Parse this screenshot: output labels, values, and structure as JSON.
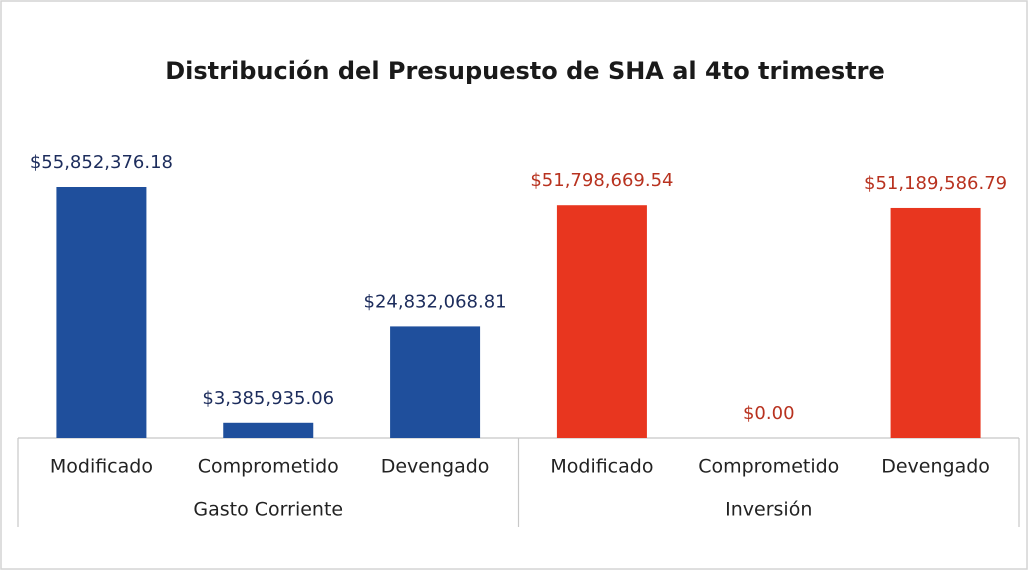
{
  "chart_data": {
    "type": "bar",
    "title": "Distribución del Presupuesto de SHA al 4to trimestre",
    "groups": [
      {
        "name": "Gasto Corriente",
        "color": "#1f4f9c",
        "label_color": "#1c2c5c",
        "categories": [
          "Modificado",
          "Comprometido",
          "Devengado"
        ],
        "values": [
          55852376.18,
          3385935.06,
          24832068.81
        ],
        "value_labels": [
          "$55,852,376.18",
          "$3,385,935.06",
          "$24,832,068.81"
        ]
      },
      {
        "name": "Inversión",
        "color": "#e8361f",
        "label_color": "#b8321f",
        "categories": [
          "Modificado",
          "Comprometido",
          "Devengado"
        ],
        "values": [
          51798669.54,
          0,
          51189586.79
        ],
        "value_labels": [
          "$51,798,669.54",
          "$0.00",
          "$51,189,586.79"
        ]
      }
    ]
  }
}
